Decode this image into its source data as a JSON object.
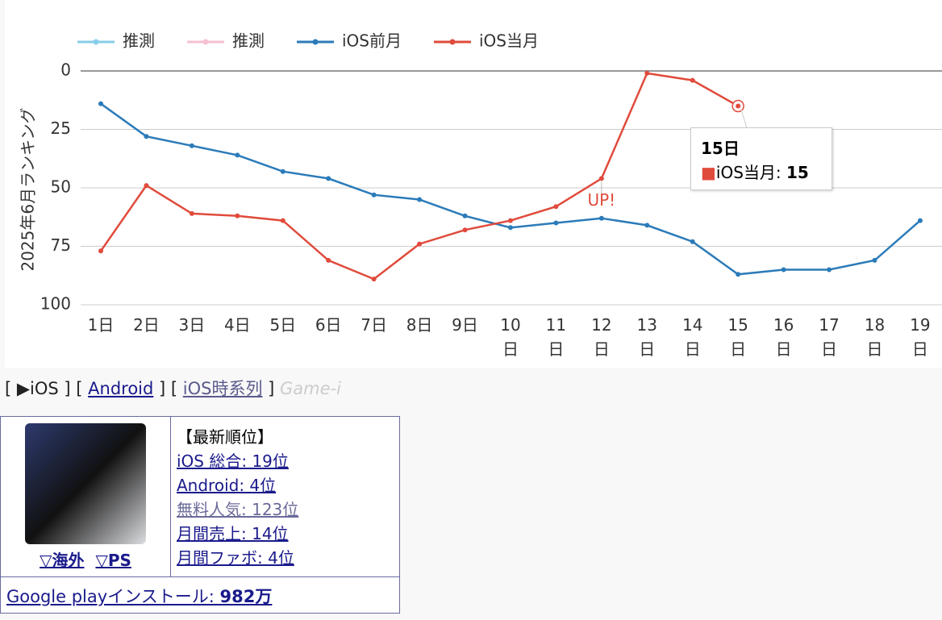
{
  "chart_data": {
    "type": "line",
    "y_label": "2025年6月ランキング",
    "categories": [
      "1日",
      "2日",
      "3日",
      "4日",
      "5日",
      "6日",
      "7日",
      "8日",
      "9日",
      "10日",
      "11日",
      "12日",
      "13日",
      "14日",
      "15日",
      "16日",
      "17日",
      "18日",
      "19日"
    ],
    "series": [
      {
        "name": "推測",
        "color": "#87ceeb",
        "values": [
          null,
          null,
          null,
          null,
          null,
          null,
          null,
          null,
          null,
          null,
          null,
          null,
          null,
          null,
          null,
          null,
          null,
          null,
          null
        ]
      },
      {
        "name": "推測",
        "color": "#f6bfd2",
        "values": [
          null,
          null,
          null,
          null,
          null,
          null,
          null,
          null,
          null,
          null,
          null,
          null,
          null,
          null,
          null,
          null,
          null,
          null,
          null
        ]
      },
      {
        "name": "iOS前月",
        "color": "#2b7bb9",
        "values": [
          14,
          28,
          32,
          36,
          43,
          46,
          53,
          55,
          62,
          67,
          65,
          63,
          66,
          73,
          87,
          85,
          85,
          81,
          64
        ]
      },
      {
        "name": "iOS当月",
        "color": "#e04b3c",
        "values": [
          77,
          49,
          61,
          62,
          64,
          81,
          89,
          74,
          68,
          64,
          58,
          46,
          1,
          4,
          15,
          null,
          null,
          null,
          null
        ]
      }
    ],
    "ylim": [
      0,
      100
    ],
    "yticks": [
      0,
      25,
      50,
      75,
      100
    ],
    "inverted": true,
    "grid": true,
    "annotations": [
      {
        "text": "UP!",
        "category": "12日"
      }
    ],
    "tooltip": {
      "label": "iOS当月:"
    }
  },
  "nav": {
    "items": [
      "▶iOS",
      "Android",
      "iOS時系列"
    ],
    "brand": "Game-i"
  },
  "card": {
    "links": [
      "▽海外",
      "▽PS"
    ],
    "heading": "【最新順位】",
    "ranks": [
      "iOS 総合: 19位",
      "Android: 4位",
      "無料人気: 123位",
      "月間売上: 14位",
      "月間ファボ: 4位"
    ],
    "install_label": "Google playインストール: ",
    "install_value": "982万"
  }
}
